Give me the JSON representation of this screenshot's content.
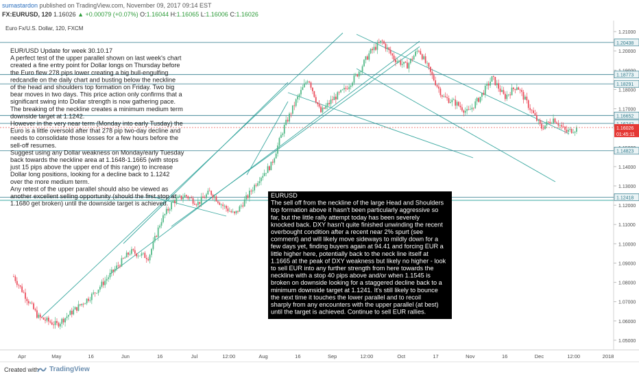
{
  "header": {
    "user": "sumastardon",
    "published": "published on TradingView.com, November 09, 2017 09:14 EST",
    "symbol": "FX:EURUSD, 120",
    "last": "1.16026",
    "change": "▲ +0.00079 (+0.07%)",
    "ohlc_o_label": "O:",
    "ohlc_o": "1.16044",
    "ohlc_h_label": "H:",
    "ohlc_h": "1.16065",
    "ohlc_l_label": "L:",
    "ohlc_l": "1.16006",
    "ohlc_c_label": "C:",
    "ohlc_c": "1.16026"
  },
  "footer": {
    "created": "Created with",
    "brand": "TradingView"
  },
  "chart_data": {
    "type": "candlestick",
    "title": "Euro Fx/U.S. Dollar, 120, FXCM",
    "ylim": [
      1.045,
      1.215
    ],
    "y_ticks": [
      "1.21000",
      "1.20000",
      "1.19000",
      "1.18000",
      "1.17000",
      "1.16000",
      "1.15000",
      "1.14000",
      "1.13000",
      "1.12000",
      "1.11000",
      "1.10000",
      "1.09000",
      "1.08000",
      "1.07000",
      "1.06000",
      "1.05000"
    ],
    "x_ticks": [
      "Apr",
      "May",
      "16",
      "Jun",
      "16",
      "Jul",
      "12:00",
      "Aug",
      "16",
      "Sep",
      "12:00",
      "Oct",
      "17",
      "Nov",
      "16",
      "Dec",
      "12:00",
      "2018"
    ],
    "price_path": [
      [
        0,
        1.083
      ],
      [
        0.04,
        1.062
      ],
      [
        0.07,
        1.058
      ],
      [
        0.1,
        1.066
      ],
      [
        0.13,
        1.074
      ],
      [
        0.16,
        1.085
      ],
      [
        0.19,
        1.096
      ],
      [
        0.22,
        1.093
      ],
      [
        0.24,
        1.112
      ],
      [
        0.26,
        1.122
      ],
      [
        0.28,
        1.125
      ],
      [
        0.3,
        1.121
      ],
      [
        0.32,
        1.127
      ],
      [
        0.34,
        1.12
      ],
      [
        0.36,
        1.115
      ],
      [
        0.38,
        1.124
      ],
      [
        0.4,
        1.134
      ],
      [
        0.42,
        1.141
      ],
      [
        0.44,
        1.16
      ],
      [
        0.46,
        1.174
      ],
      [
        0.48,
        1.186
      ],
      [
        0.5,
        1.168
      ],
      [
        0.52,
        1.175
      ],
      [
        0.54,
        1.18
      ],
      [
        0.56,
        1.188
      ],
      [
        0.58,
        1.199
      ],
      [
        0.6,
        1.205
      ],
      [
        0.62,
        1.196
      ],
      [
        0.64,
        1.192
      ],
      [
        0.66,
        1.201
      ],
      [
        0.68,
        1.188
      ],
      [
        0.7,
        1.176
      ],
      [
        0.72,
        1.173
      ],
      [
        0.74,
        1.168
      ],
      [
        0.76,
        1.176
      ],
      [
        0.78,
        1.186
      ],
      [
        0.8,
        1.176
      ],
      [
        0.82,
        1.182
      ],
      [
        0.84,
        1.171
      ],
      [
        0.86,
        1.16
      ],
      [
        0.88,
        1.165
      ],
      [
        0.9,
        1.158
      ],
      [
        0.92,
        1.16
      ]
    ],
    "levels": [
      {
        "value": 1.20438,
        "label": "1.20438",
        "color": "#2f7a8c"
      },
      {
        "value": 1.18773,
        "label": "1.18773",
        "color": "#2f7a8c"
      },
      {
        "value": 1.18291,
        "label": "1.18291",
        "color": "#2f7a8c"
      },
      {
        "value": 1.16652,
        "label": "1.16652",
        "color": "#2f7a8c"
      },
      {
        "value": 1.16242,
        "label": "1.16242",
        "color": "#2f7a8c"
      },
      {
        "value": 1.14823,
        "label": "1.14823",
        "color": "#2f7a8c"
      },
      {
        "value": 1.12418,
        "label": "1.12418",
        "color": "#2f7a8c"
      }
    ],
    "last_price": {
      "value": 1.16026,
      "label": "1.16026",
      "countdown": "01:45:11",
      "color": "#e53935"
    },
    "annotations": {
      "left_title": "EUR/USD     Update for week 30.10.17",
      "left_lines": [
        "A perfect test of the upper parallel shown on last week's chart",
        "created a fine entry point for Dollar longs on Thursday before",
        "the Euro flew 278 pips lower creating a big bull-engulfing",
        "redcandle on the daily chart and busting below the neckline",
        "of the head and shoulders top formation on Friday. Two big",
        "bear moves in two days. This price action only confirms that a",
        "significant swing into Dollar strength is now gathering pace.",
        "The breaking of the neckline creates a minimum medium term",
        "downside target at 1.1242.",
        "However in the very near term (Monday into early Tusday) the",
        "Euro is a little oversold after that 278 pip two-day decline and",
        "needs to consolidate those losses for a few hours before the",
        "sell-off resumes.",
        "Suggest using any Dollar weakness on Monday/early Tuesday",
        "back towards the neckline area at 1.1648-1.1665 (with stops",
        "just 15 pips above the upper end of this range) to increase",
        "Dollar long positions, looking for a decline back to 1.1242",
        "over the more medium term.",
        "Any retest of the upper parallel should also be viewed as",
        "another excellent selling opportunity (should the first stop at",
        "1.1680 get broken) until the downside target is achieved."
      ],
      "right_title": "EURUSD",
      "right_lines": [
        "The sell off from the neckline of the large Head and Shoulders",
        "top formation above it hasn't been particularly aggressive so",
        "far, but the little rally attempt today has been severely",
        "knocked back. DXY hasn't quite finished unwinding the recent",
        "overbought condition after a recent near 2% spurt (see",
        "comment) and will likely move sideways to mildly down for a",
        "few days yet, finding buyers again at 94.41 and forcing EUR a",
        "little higher here, potentially back to the neck line itself at",
        "1.1665 at the peak of DXY weakness but likely no higher - look",
        "to sell EUR into any further strength from here towards the",
        "neckline with a stop  40 pips above and/or when 1.1545 is",
        "broken on downside looking for a staggered decline back to a",
        "minimum downside target at 1.1241. It's still likely to bounce",
        "the next time it touches the lower parallel and to recoil",
        "sharply from any encounters with the upper parallel (at best)",
        "until the target is achieved. Continue to sell EUR rallies."
      ]
    },
    "colors": {
      "up": "#53b987",
      "down": "#eb4d5c",
      "trendline": "#3aa8a0",
      "axis_text": "#4a4a4a"
    }
  }
}
